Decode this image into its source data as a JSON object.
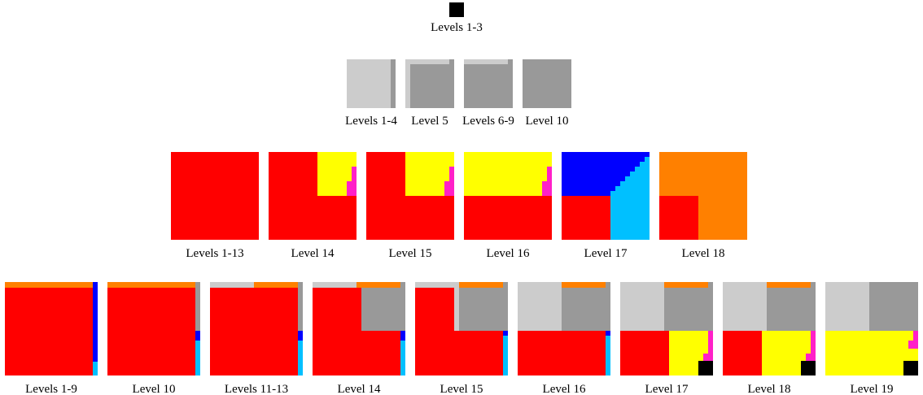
{
  "rows": [
    {
      "panels": [
        {
          "label": "Levels 1-3"
        }
      ]
    },
    {
      "panels": [
        {
          "label": "Levels 1-4"
        },
        {
          "label": "Level 5"
        },
        {
          "label": "Levels 6-9"
        },
        {
          "label": "Level 10"
        }
      ]
    },
    {
      "panels": [
        {
          "label": "Levels 1-13"
        },
        {
          "label": "Level 14"
        },
        {
          "label": "Level 15"
        },
        {
          "label": "Level 16"
        },
        {
          "label": "Level 17"
        },
        {
          "label": "Level 18"
        }
      ]
    },
    {
      "panels": [
        {
          "label": "Levels 1-9"
        },
        {
          "label": "Level 10"
        },
        {
          "label": "Levels 11-13"
        },
        {
          "label": "Level 14"
        },
        {
          "label": "Level 15"
        },
        {
          "label": "Level 16"
        },
        {
          "label": "Level 17"
        },
        {
          "label": "Level 18"
        },
        {
          "label": "Level 19"
        }
      ]
    }
  ]
}
